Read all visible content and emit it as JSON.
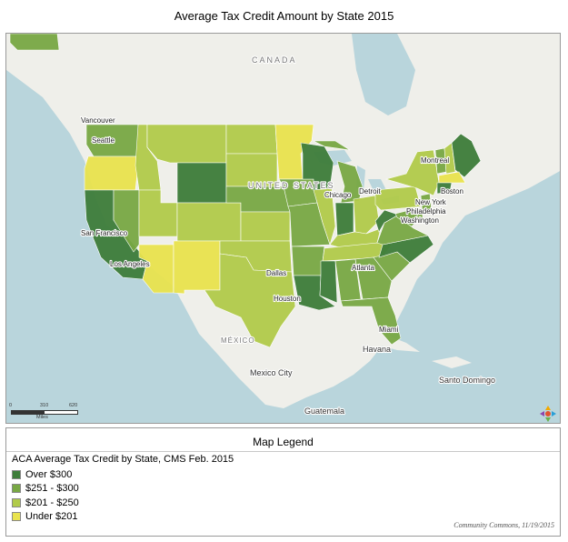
{
  "title": "Average Tax Credit Amount by State 2015",
  "map": {
    "place_labels": {
      "canada": "CANADA",
      "united_states": "UNITED STATES",
      "mexico": "MÉXICO",
      "mexico_city": "Mexico City",
      "havana": "Havana",
      "santo_domingo": "Santo Domingo",
      "guatemala": "Guatemala"
    },
    "city_labels": {
      "vancouver": "Vancouver",
      "seattle": "Seattle",
      "san_francisco": "San Francisco",
      "los_angeles": "Los Angeles",
      "dallas": "Dallas",
      "houston": "Houston",
      "chicago": "Chicago",
      "detroit": "Detroit",
      "atlanta": "Atlanta",
      "miami": "Miami",
      "washington": "Washington",
      "philadelphia": "Philadelphia",
      "new_york": "New York",
      "boston": "Boston",
      "montreal": "Montreal"
    },
    "scale": {
      "ticks": [
        "0",
        "310",
        "620"
      ],
      "unit": "Miles"
    },
    "logo_icon": "community-commons-logo-icon",
    "states": [
      {
        "name": "Washington",
        "class": "$251 - $300"
      },
      {
        "name": "Oregon",
        "class": "Under $201"
      },
      {
        "name": "California",
        "class": "Over $300"
      },
      {
        "name": "Nevada",
        "class": "$251 - $300"
      },
      {
        "name": "Idaho",
        "class": "$201 - $250"
      },
      {
        "name": "Montana",
        "class": "$201 - $250"
      },
      {
        "name": "Wyoming",
        "class": "Over $300"
      },
      {
        "name": "Utah",
        "class": "$201 - $250"
      },
      {
        "name": "Colorado",
        "class": "$201 - $250"
      },
      {
        "name": "Arizona",
        "class": "Under $201"
      },
      {
        "name": "New Mexico",
        "class": "Under $201"
      },
      {
        "name": "North Dakota",
        "class": "$201 - $250"
      },
      {
        "name": "South Dakota",
        "class": "$201 - $250"
      },
      {
        "name": "Nebraska",
        "class": "$251 - $300"
      },
      {
        "name": "Kansas",
        "class": "$201 - $250"
      },
      {
        "name": "Oklahoma",
        "class": "$201 - $250"
      },
      {
        "name": "Texas",
        "class": "$201 - $250"
      },
      {
        "name": "Minnesota",
        "class": "Under $201"
      },
      {
        "name": "Iowa",
        "class": "$251 - $300"
      },
      {
        "name": "Missouri",
        "class": "$251 - $300"
      },
      {
        "name": "Arkansas",
        "class": "$251 - $300"
      },
      {
        "name": "Louisiana",
        "class": "Over $300"
      },
      {
        "name": "Wisconsin",
        "class": "Over $300"
      },
      {
        "name": "Illinois",
        "class": "$201 - $250"
      },
      {
        "name": "Michigan",
        "class": "$251 - $300"
      },
      {
        "name": "Indiana",
        "class": "Over $300"
      },
      {
        "name": "Ohio",
        "class": "$201 - $250"
      },
      {
        "name": "Kentucky",
        "class": "$201 - $250"
      },
      {
        "name": "Tennessee",
        "class": "$201 - $250"
      },
      {
        "name": "Mississippi",
        "class": "Over $300"
      },
      {
        "name": "Alabama",
        "class": "$251 - $300"
      },
      {
        "name": "Georgia",
        "class": "$251 - $300"
      },
      {
        "name": "Florida",
        "class": "$251 - $300"
      },
      {
        "name": "South Carolina",
        "class": "$251 - $300"
      },
      {
        "name": "North Carolina",
        "class": "Over $300"
      },
      {
        "name": "Virginia",
        "class": "$251 - $300"
      },
      {
        "name": "West Virginia",
        "class": "Over $300"
      },
      {
        "name": "Pennsylvania",
        "class": "$201 - $250"
      },
      {
        "name": "New York",
        "class": "$201 - $250"
      },
      {
        "name": "Vermont",
        "class": "$251 - $300"
      },
      {
        "name": "New Hampshire",
        "class": "$201 - $250"
      },
      {
        "name": "Maine",
        "class": "Over $300"
      },
      {
        "name": "Massachusetts",
        "class": "Under $201"
      },
      {
        "name": "Connecticut",
        "class": "Over $300"
      },
      {
        "name": "New Jersey",
        "class": "$251 - $300"
      },
      {
        "name": "Delaware",
        "class": "$251 - $300"
      },
      {
        "name": "Maryland",
        "class": "$251 - $300"
      },
      {
        "name": "Alaska",
        "class": "$251 - $300"
      }
    ]
  },
  "legend": {
    "title": "Map Legend",
    "subtitle": "ACA Average Tax Credit by State, CMS Feb. 2015",
    "items": [
      {
        "label": "Over $300",
        "color": "#3e7d3a"
      },
      {
        "label": "$251 - $300",
        "color": "#78a844"
      },
      {
        "label": "$201 - $250",
        "color": "#b1cb4a"
      },
      {
        "label": "Under $201",
        "color": "#e9e34e"
      }
    ],
    "credit": "Community Commons, 11/19/2015"
  }
}
